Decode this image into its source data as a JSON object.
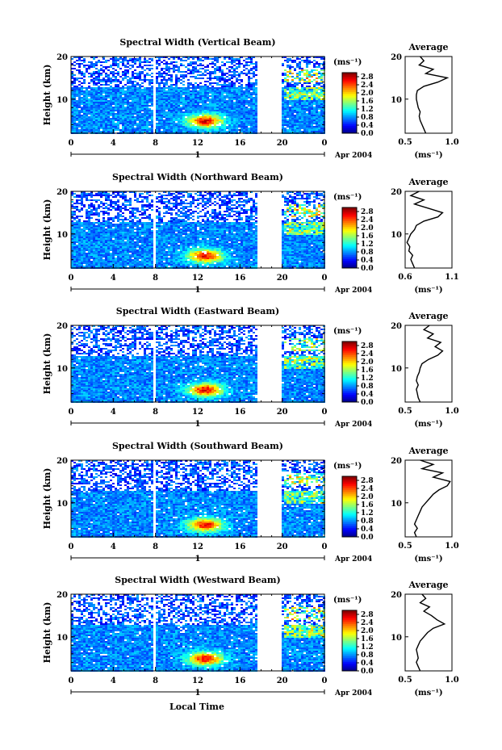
{
  "figure": {
    "xaxis_title": "Local Time",
    "ylabel": "Height (km)",
    "colorbar_unit": "(ms⁻¹)",
    "average_title": "Average",
    "average_xlabel": "(ms⁻¹)",
    "date_label": "Apr 2004",
    "day_label": "1"
  },
  "chart_data": [
    {
      "type": "heatmap",
      "title": "Spectral Width (Vertical Beam)",
      "xlabel": "",
      "ylabel": "Height (km)",
      "xlim": [
        0,
        24
      ],
      "ylim": [
        2,
        20
      ],
      "xticks": [
        "0",
        "4",
        "8",
        "12",
        "16",
        "20",
        "0"
      ],
      "yticks": [
        "10",
        "20"
      ],
      "colorbar": {
        "label": "(ms⁻¹)",
        "range": [
          0,
          3.0
        ],
        "ticks": [
          "0.0",
          "0.4",
          "0.8",
          "1.2",
          "1.6",
          "2.0",
          "2.4",
          "2.8"
        ]
      },
      "data_gaps_hours": [
        [
          7.7,
          7.9
        ],
        [
          17.5,
          19.8
        ]
      ],
      "average_profile": {
        "title": "Average",
        "xlabel": "(ms⁻¹)",
        "xlim": [
          0.5,
          1.0
        ],
        "xticks": [
          "0.5",
          "1.0"
        ],
        "ylim": [
          2,
          20
        ],
        "yticks": [
          "10",
          "20"
        ],
        "height_km": [
          2,
          3,
          4,
          5,
          6,
          7,
          8,
          9,
          10,
          11,
          12,
          13,
          14,
          15,
          16,
          17,
          18,
          19,
          20
        ],
        "width_ms": [
          0.72,
          0.7,
          0.68,
          0.66,
          0.65,
          0.66,
          0.64,
          0.63,
          0.62,
          0.62,
          0.63,
          0.7,
          0.85,
          0.95,
          0.72,
          0.8,
          0.65,
          0.7,
          0.66
        ]
      }
    },
    {
      "type": "heatmap",
      "title": "Spectral Width (Northward Beam)",
      "xlabel": "",
      "ylabel": "Height (km)",
      "xlim": [
        0,
        24
      ],
      "ylim": [
        2,
        20
      ],
      "xticks": [
        "0",
        "4",
        "8",
        "12",
        "16",
        "20",
        "0"
      ],
      "yticks": [
        "10",
        "20"
      ],
      "colorbar": {
        "label": "(ms⁻¹)",
        "range": [
          0,
          3.0
        ],
        "ticks": [
          "0.0",
          "0.4",
          "0.8",
          "1.2",
          "1.6",
          "2.0",
          "2.4",
          "2.8"
        ]
      },
      "data_gaps_hours": [
        [
          7.7,
          7.9
        ],
        [
          17.5,
          19.8
        ]
      ],
      "average_profile": {
        "title": "Average",
        "xlabel": "(ms⁻¹)",
        "xlim": [
          0.6,
          1.1
        ],
        "xticks": [
          "0.6",
          "1.1"
        ],
        "ylim": [
          2,
          20
        ],
        "yticks": [
          "10",
          "20"
        ],
        "height_km": [
          2,
          3,
          4,
          5,
          6,
          7,
          8,
          9,
          10,
          11,
          12,
          13,
          14,
          15,
          16,
          17,
          18,
          19,
          20
        ],
        "width_ms": [
          0.7,
          0.68,
          0.66,
          0.68,
          0.64,
          0.65,
          0.62,
          0.64,
          0.66,
          0.7,
          0.72,
          0.8,
          0.95,
          1.0,
          0.85,
          0.7,
          0.8,
          0.66,
          0.75
        ]
      }
    },
    {
      "type": "heatmap",
      "title": "Spectral Width (Eastward Beam)",
      "xlabel": "",
      "ylabel": "Height (km)",
      "xlim": [
        0,
        24
      ],
      "ylim": [
        2,
        20
      ],
      "xticks": [
        "0",
        "4",
        "8",
        "12",
        "16",
        "20",
        "0"
      ],
      "yticks": [
        "10",
        "20"
      ],
      "colorbar": {
        "label": "(ms⁻¹)",
        "range": [
          0,
          3.0
        ],
        "ticks": [
          "0.0",
          "0.4",
          "0.8",
          "1.2",
          "1.6",
          "2.0",
          "2.4",
          "2.8"
        ]
      },
      "data_gaps_hours": [
        [
          7.7,
          7.9
        ],
        [
          17.5,
          19.8
        ]
      ],
      "average_profile": {
        "title": "Average",
        "xlabel": "(ms⁻¹)",
        "xlim": [
          0.5,
          1.0
        ],
        "xticks": [
          "0.5",
          "1.0"
        ],
        "ylim": [
          2,
          20
        ],
        "yticks": [
          "10",
          "20"
        ],
        "height_km": [
          2,
          3,
          4,
          5,
          6,
          7,
          8,
          9,
          10,
          11,
          12,
          13,
          14,
          15,
          16,
          17,
          18,
          19,
          20
        ],
        "width_ms": [
          0.66,
          0.64,
          0.63,
          0.62,
          0.64,
          0.62,
          0.63,
          0.65,
          0.66,
          0.68,
          0.75,
          0.85,
          0.9,
          0.82,
          0.88,
          0.74,
          0.8,
          0.7,
          0.76
        ]
      }
    },
    {
      "type": "heatmap",
      "title": "Spectral Width (Southward Beam)",
      "xlabel": "",
      "ylabel": "Height (km)",
      "xlim": [
        0,
        24
      ],
      "ylim": [
        2,
        20
      ],
      "xticks": [
        "0",
        "4",
        "8",
        "12",
        "16",
        "20",
        "0"
      ],
      "yticks": [
        "10",
        "20"
      ],
      "colorbar": {
        "label": "(ms⁻¹)",
        "range": [
          0,
          3.0
        ],
        "ticks": [
          "0.0",
          "0.4",
          "0.8",
          "1.2",
          "1.6",
          "2.0",
          "2.4",
          "2.8"
        ]
      },
      "data_gaps_hours": [
        [
          7.7,
          7.9
        ],
        [
          17.5,
          19.8
        ]
      ],
      "average_profile": {
        "title": "Average",
        "xlabel": "(ms⁻¹)",
        "xlim": [
          0.5,
          1.0
        ],
        "xticks": [
          "0.5",
          "1.0"
        ],
        "ylim": [
          2,
          20
        ],
        "yticks": [
          "10",
          "20"
        ],
        "height_km": [
          2,
          3,
          4,
          5,
          6,
          7,
          8,
          9,
          10,
          11,
          12,
          13,
          14,
          15,
          16,
          17,
          18,
          19,
          20
        ],
        "width_ms": [
          0.62,
          0.6,
          0.63,
          0.6,
          0.62,
          0.64,
          0.66,
          0.68,
          0.72,
          0.76,
          0.8,
          0.86,
          0.95,
          0.98,
          0.8,
          0.9,
          0.68,
          0.8,
          0.66
        ]
      }
    },
    {
      "type": "heatmap",
      "title": "Spectral Width (Westward Beam)",
      "xlabel": "Local Time",
      "ylabel": "Height (km)",
      "xlim": [
        0,
        24
      ],
      "ylim": [
        2,
        20
      ],
      "xticks": [
        "0",
        "4",
        "8",
        "12",
        "16",
        "20",
        "0"
      ],
      "yticks": [
        "10",
        "20"
      ],
      "colorbar": {
        "label": "(ms⁻¹)",
        "range": [
          0,
          3.0
        ],
        "ticks": [
          "0.0",
          "0.4",
          "0.8",
          "1.2",
          "1.6",
          "2.0",
          "2.4",
          "2.8"
        ]
      },
      "data_gaps_hours": [
        [
          7.7,
          7.9
        ],
        [
          17.5,
          19.8
        ]
      ],
      "average_profile": {
        "title": "Average",
        "xlabel": "(ms⁻¹)",
        "xlim": [
          0.5,
          1.0
        ],
        "xticks": [
          "0.5",
          "1.0"
        ],
        "ylim": [
          2,
          20
        ],
        "yticks": [
          "10",
          "20"
        ],
        "height_km": [
          2,
          3,
          4,
          5,
          6,
          7,
          8,
          9,
          10,
          11,
          12,
          13,
          14,
          15,
          16,
          17,
          18,
          19,
          20
        ],
        "width_ms": [
          0.66,
          0.64,
          0.62,
          0.64,
          0.63,
          0.62,
          0.64,
          0.66,
          0.7,
          0.74,
          0.8,
          0.92,
          0.84,
          0.78,
          0.7,
          0.76,
          0.66,
          0.72,
          0.68
        ]
      }
    }
  ]
}
